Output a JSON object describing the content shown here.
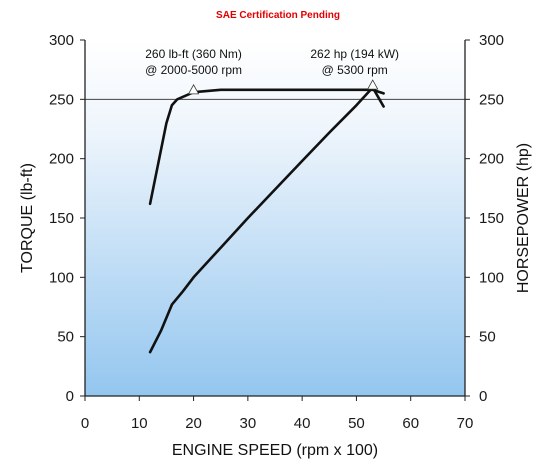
{
  "chart_data": {
    "type": "line",
    "title": "SAE Certification Pending",
    "xlabel": "ENGINE SPEED (rpm x 100)",
    "ylabel_left": "TORQUE (lb-ft)",
    "ylabel_right": "HORSEPOWER (hp)",
    "xlim": [
      0,
      70
    ],
    "ylim": [
      0,
      300
    ],
    "x_ticks": [
      "0",
      "10",
      "20",
      "30",
      "40",
      "50",
      "60",
      "70"
    ],
    "y_ticks": [
      "0",
      "50",
      "100",
      "150",
      "200",
      "250",
      "300"
    ],
    "grid": "horizontal line at 250",
    "background": {
      "top": "#ffffff",
      "bottom": "#94c6ef"
    },
    "series": [
      {
        "points": [
          [
            12,
            162
          ],
          [
            15,
            230
          ],
          [
            16,
            245
          ],
          [
            17,
            250
          ],
          [
            20,
            256
          ],
          [
            25,
            258
          ],
          [
            30,
            258
          ],
          [
            40,
            258
          ],
          [
            50,
            258
          ],
          [
            53,
            258
          ],
          [
            55,
            255
          ]
        ]
      },
      {
        "points": [
          [
            12,
            37
          ],
          [
            14,
            55
          ],
          [
            16,
            77
          ],
          [
            18,
            88
          ],
          [
            20,
            100
          ],
          [
            25,
            125
          ],
          [
            30,
            150
          ],
          [
            35,
            174
          ],
          [
            40,
            198
          ],
          [
            45,
            222
          ],
          [
            50,
            245
          ],
          [
            53,
            260
          ],
          [
            55,
            244
          ]
        ]
      }
    ],
    "annotations": [
      {
        "x": 20,
        "y": 258,
        "line1": "260 lb-ft (360 Nm)",
        "line2": "@ 2000-5000 rpm"
      },
      {
        "x": 53,
        "y": 262,
        "line1": "262 hp (194 kW)",
        "line2": "@ 5300 rpm"
      }
    ]
  }
}
